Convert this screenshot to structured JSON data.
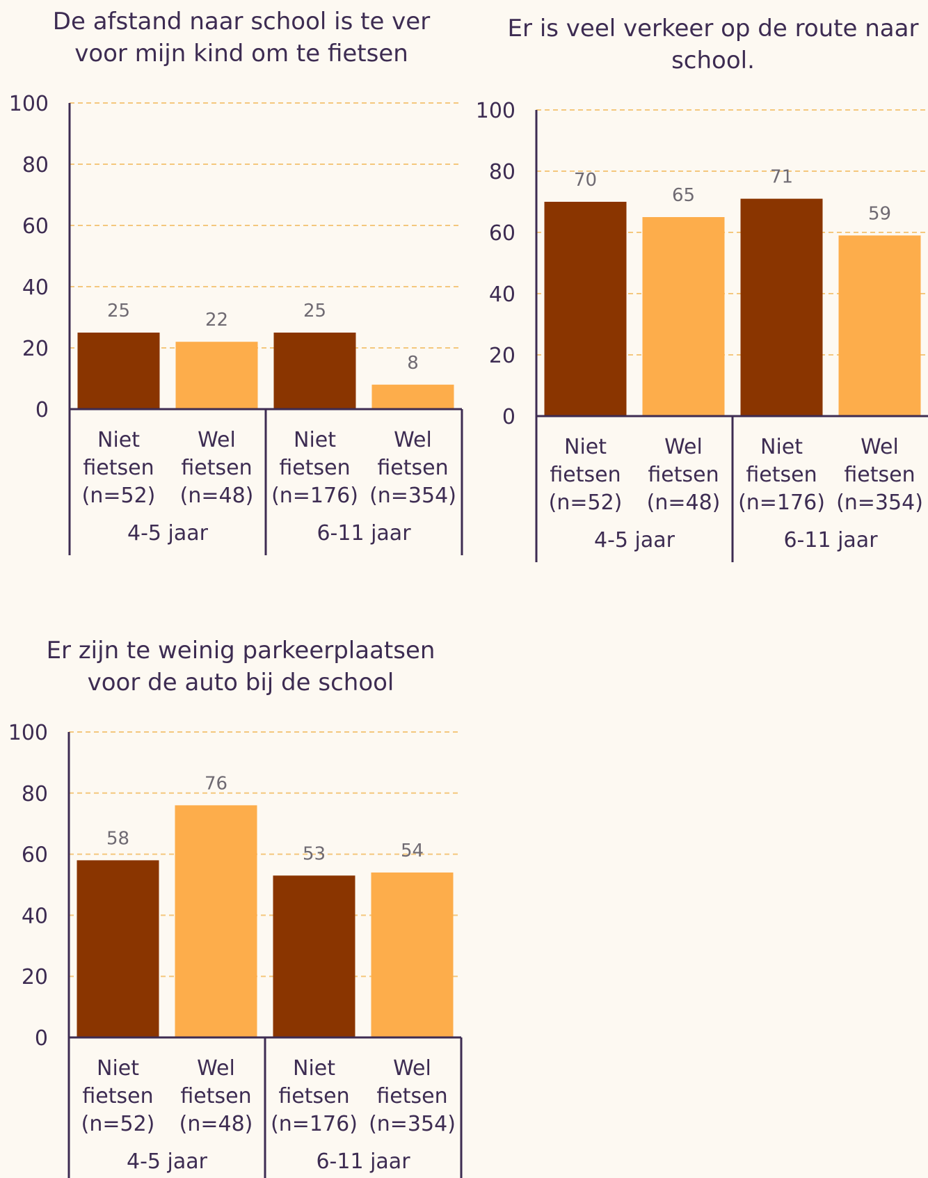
{
  "colors": {
    "niet_fietsen": "#8a3500",
    "wel_fietsen": "#fdad4b",
    "axis": "#3d2c52",
    "grid": "#f4c77d"
  },
  "chart_data": [
    {
      "type": "bar",
      "title_lines": [
        "De afstand naar school is te ver",
        "voor mijn kind om te fietsen"
      ],
      "ylim": [
        0,
        100
      ],
      "yticks": [
        "0",
        "20",
        "40",
        "60",
        "80",
        "100"
      ],
      "grid": true,
      "groups": [
        "4-5 jaar",
        "6-11 jaar"
      ],
      "categories": [
        {
          "line1": "Niet",
          "line2": "fietsen",
          "line3": "(n=52)"
        },
        {
          "line1": "Wel",
          "line2": "fietsen",
          "line3": "(n=48)"
        },
        {
          "line1": "Niet",
          "line2": "fietsen",
          "line3": "(n=176)"
        },
        {
          "line1": "Wel",
          "line2": "fietsen",
          "line3": "(n=354)"
        }
      ],
      "values": [
        25,
        22,
        25,
        8
      ],
      "value_labels": [
        "25",
        "22",
        "25",
        "8"
      ]
    },
    {
      "type": "bar",
      "title_lines": [
        "Er is veel verkeer op de route naar",
        "school."
      ],
      "ylim": [
        0,
        100
      ],
      "yticks": [
        "0",
        "20",
        "40",
        "60",
        "80",
        "100"
      ],
      "grid": true,
      "groups": [
        "4-5 jaar",
        "6-11 jaar"
      ],
      "categories": [
        {
          "line1": "Niet",
          "line2": "fietsen",
          "line3": "(n=52)"
        },
        {
          "line1": "Wel",
          "line2": "fietsen",
          "line3": "(n=48)"
        },
        {
          "line1": "Niet",
          "line2": "fietsen",
          "line3": "(n=176)"
        },
        {
          "line1": "Wel",
          "line2": "fietsen",
          "line3": "(n=354)"
        }
      ],
      "values": [
        70,
        65,
        71,
        59
      ],
      "value_labels": [
        "70",
        "65",
        "71",
        "59"
      ]
    },
    {
      "type": "bar",
      "title_lines": [
        "Er zijn te weinig parkeerplaatsen",
        "voor de auto bij de school"
      ],
      "ylim": [
        0,
        100
      ],
      "yticks": [
        "0",
        "20",
        "40",
        "60",
        "80",
        "100"
      ],
      "grid": true,
      "groups": [
        "4-5 jaar",
        "6-11 jaar"
      ],
      "categories": [
        {
          "line1": "Niet",
          "line2": "fietsen",
          "line3": "(n=52)"
        },
        {
          "line1": "Wel",
          "line2": "fietsen",
          "line3": "(n=48)"
        },
        {
          "line1": "Niet",
          "line2": "fietsen",
          "line3": "(n=176)"
        },
        {
          "line1": "Wel",
          "line2": "fietsen",
          "line3": "(n=354)"
        }
      ],
      "values": [
        58,
        76,
        53,
        54
      ],
      "value_labels": [
        "58",
        "76",
        "53",
        "54"
      ]
    }
  ]
}
